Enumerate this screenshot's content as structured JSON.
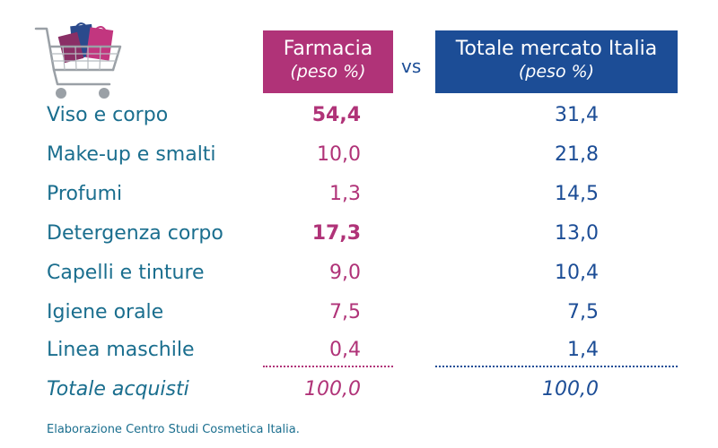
{
  "header": {
    "pharmacy_title": "Farmacia",
    "pharmacy_sub": "(peso %)",
    "vs": "vs",
    "market_title": "Totale mercato Italia",
    "market_sub": "(peso %)"
  },
  "rows": [
    {
      "category": "Viso e corpo",
      "farmacia": "54,4",
      "mercato": "31,4"
    },
    {
      "category": "Make-up e smalti",
      "farmacia": "10,0",
      "mercato": "21,8"
    },
    {
      "category": "Profumi",
      "farmacia": "1,3",
      "mercato": "14,5"
    },
    {
      "category": "Detergenza corpo",
      "farmacia": "17,3",
      "mercato": "13,0"
    },
    {
      "category": "Capelli e tinture",
      "farmacia": "9,0",
      "mercato": "10,4"
    },
    {
      "category": "Igiene orale",
      "farmacia": "7,5",
      "mercato": "7,5"
    },
    {
      "category": "Linea maschile",
      "farmacia": "0,4",
      "mercato": "1,4"
    }
  ],
  "total": {
    "category": "Totale acquisti",
    "farmacia": "100,0",
    "mercato": "100,0"
  },
  "footer": "Elaborazione Centro Studi Cosmetica Italia.",
  "colors": {
    "pharmacy": "#b03378",
    "market": "#1c4d96",
    "category_text": "#1a6e8e"
  },
  "icons": {
    "cart": "shopping-cart-icon"
  },
  "chart_data": {
    "type": "table",
    "columns": [
      "",
      "Farmacia (peso %)",
      "Totale mercato Italia (peso %)"
    ],
    "categories": [
      "Viso e corpo",
      "Make-up e smalti",
      "Profumi",
      "Detergenza corpo",
      "Capelli e tinture",
      "Igiene orale",
      "Linea maschile",
      "Totale acquisti"
    ],
    "series": [
      {
        "name": "Farmacia",
        "values": [
          54.4,
          10.0,
          1.3,
          17.3,
          9.0,
          7.5,
          0.4,
          100.0
        ]
      },
      {
        "name": "Totale mercato Italia",
        "values": [
          31.4,
          21.8,
          14.5,
          13.0,
          10.4,
          7.5,
          1.4,
          100.0
        ]
      }
    ],
    "highlighted_farmacia_rows": [
      "Viso e corpo",
      "Detergenza corpo"
    ]
  }
}
